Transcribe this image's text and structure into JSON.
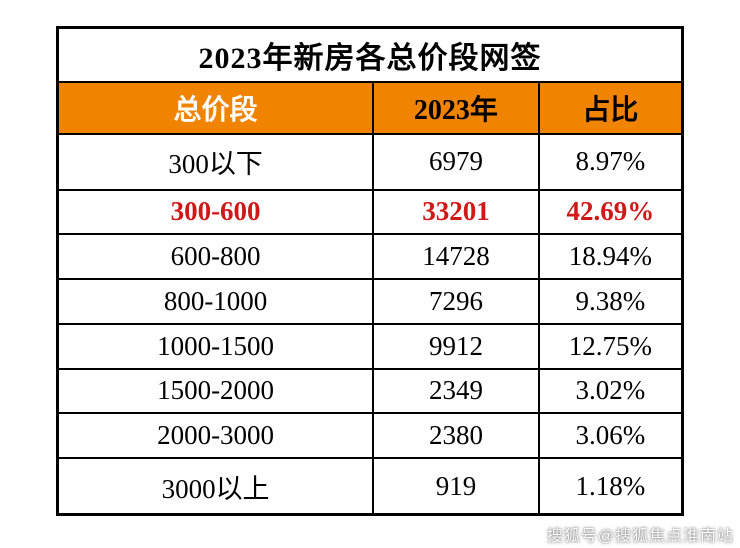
{
  "chart_data": {
    "type": "table",
    "title": "2023年新房各总价段网签",
    "columns": [
      "总价段",
      "2023年",
      "占比"
    ],
    "rows": [
      [
        "300以下",
        "6979",
        "8.97%"
      ],
      [
        "300-600",
        "33201",
        "42.69%"
      ],
      [
        "600-800",
        "14728",
        "18.94%"
      ],
      [
        "800-1000",
        "7296",
        "9.38%"
      ],
      [
        "1000-1500",
        "9912",
        "12.75%"
      ],
      [
        "1500-2000",
        "2349",
        "3.02%"
      ],
      [
        "2000-3000",
        "2380",
        "3.06%"
      ],
      [
        "3000以上",
        "919",
        "1.18%"
      ]
    ],
    "highlighted_row_index": 1,
    "highlighted_row_label": "300-600"
  },
  "watermark": {
    "text": "搜狐号@搜狐焦点淮南站"
  },
  "colors": {
    "header_bg": "#F08300",
    "header_text": "#000000",
    "header_first_col_text": "#FFFFFF",
    "highlight": "#D01818",
    "border": "#000000"
  }
}
